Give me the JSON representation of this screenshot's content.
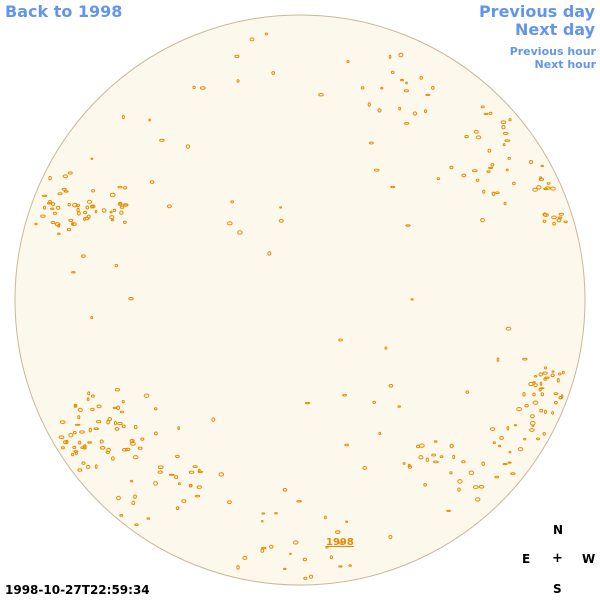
{
  "nav": {
    "back_label": "Back to 1998",
    "prev_day_label": "Previous day",
    "next_day_label": "Next day",
    "prev_hour_label": "Previous hour",
    "next_hour_label": "Next hour"
  },
  "disk": {
    "year_label": "1998",
    "fill_color": "#fdf8ec",
    "rim_color": "#c8b89a",
    "feature_color": "#e88a00"
  },
  "compass": {
    "north": "N",
    "east": "E",
    "center": "+",
    "west": "W",
    "south": "S"
  },
  "timestamp": "1998-10-27T22:59:34",
  "link_color": "#6495ED"
}
